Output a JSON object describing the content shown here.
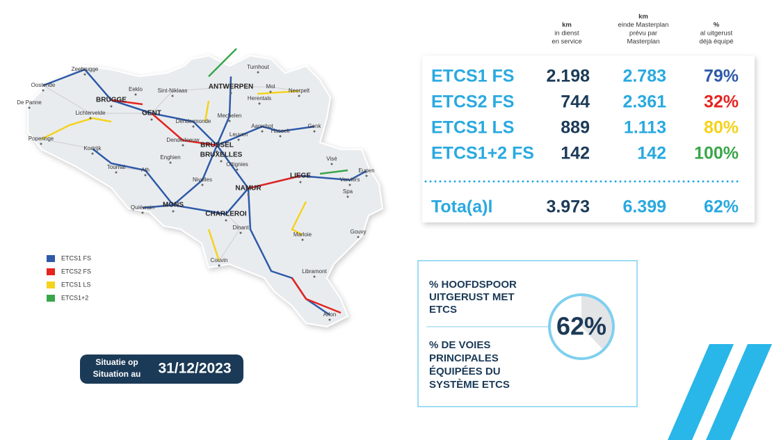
{
  "header": {
    "km_in_service": [
      "km",
      "in dienst",
      "en service"
    ],
    "km_masterplan": [
      "km",
      "einde Masterplan",
      "prévu par",
      "Masterplan"
    ],
    "pct": [
      "%",
      "al uitgerust",
      "déjà équipé"
    ]
  },
  "table": {
    "rows": [
      [
        "ETCS1 FS",
        "2.198",
        "2.783",
        "79%"
      ],
      [
        "ETCS2 FS",
        "744",
        "2.361",
        "32%"
      ],
      [
        "ETCS1 LS",
        "889",
        "1.113",
        "80%"
      ],
      [
        "ETCS1+2 FS",
        "142",
        "142",
        "100%"
      ]
    ],
    "total": [
      "Tota(a)l",
      "3.973",
      "6.399",
      "62%"
    ]
  },
  "callout": {
    "nl": [
      "% HOOFDSPOOR",
      "UITGERUST MET",
      "ETCS"
    ],
    "fr": [
      "% DE VOIES",
      "PRINCIPALES",
      "ÉQUIPÉES DU",
      "SYSTÈME ETCS"
    ],
    "donut": {
      "value": 62,
      "label": "62%"
    }
  },
  "legend": [
    {
      "name": "ETCS1 FS",
      "color": "#2e5aa8"
    },
    {
      "name": "ETCS2 FS",
      "color": "#e52420"
    },
    {
      "name": "ETCS1 LS",
      "color": "#f5d21c"
    },
    {
      "name": "ETCS1+2",
      "color": "#3aa64a"
    }
  ],
  "date": {
    "label": [
      "Situatie op",
      "Situation au"
    ],
    "value": "31/12/2023"
  },
  "map": {
    "cities": [
      "Zeebrugge",
      "Oostende",
      "De Panne",
      "BRUGGE",
      "Eeklo",
      "Lichtervelde",
      "GENT",
      "Sint-Niklaas",
      "ANTWERPEN",
      "Turnhout",
      "Mol",
      "Neerpelt",
      "Herentals",
      "Mechelen",
      "Dendermonde",
      "Aarschot",
      "Leuven",
      "Hasselt",
      "Genk",
      "Poperinge",
      "Kortrijk",
      "Denderleeuw",
      "BRUSSEL",
      "BRUXELLES",
      "Enghien",
      "Tournai",
      "Ath",
      "Ottignies",
      "Visé",
      "Eupen",
      "Nivelles",
      "NAMUR",
      "LIEGE",
      "Verviers",
      "Spa",
      "MONS",
      "Quiévrain",
      "CHARLEROI",
      "Dinant",
      "Marloie",
      "Gouvy",
      "Couvin",
      "Libramont",
      "Arlon"
    ]
  }
}
